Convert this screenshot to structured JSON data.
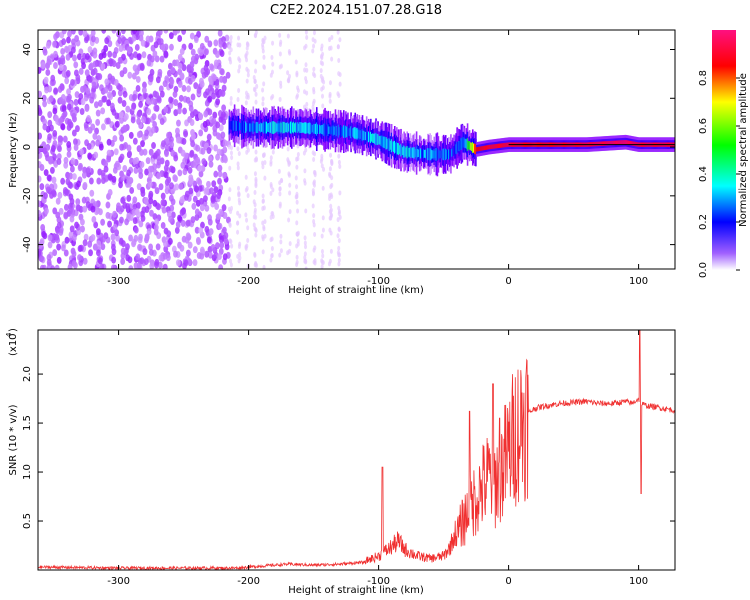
{
  "title": "C2E2.2024.151.07.28.G18",
  "chart_data": [
    {
      "type": "heatmap",
      "xlabel": "Height of straight line (km)",
      "ylabel": "Frequency (Hz)",
      "xlim": [
        -362,
        128
      ],
      "ylim": [
        -50,
        48
      ],
      "xticks": [
        -300,
        -200,
        -100,
        0,
        100
      ],
      "xtick_labels": [
        "-300",
        "-200",
        "-100",
        "0",
        "100"
      ],
      "yticks": [
        -40,
        -20,
        0,
        20,
        40
      ],
      "ytick_labels": [
        "-40",
        "-20",
        "0",
        "20",
        "40"
      ],
      "colorbar": {
        "label": "Normalized spectral amplitude",
        "range": [
          0.0,
          1.0
        ],
        "ticks": [
          0.0,
          0.2,
          0.4,
          0.6,
          0.8
        ],
        "tick_labels": [
          "0.0",
          "0.2",
          "0.4",
          "0.6",
          "0.8"
        ],
        "colormap": [
          "#ffffff",
          "#8800ff",
          "#0000ff",
          "#00ffff",
          "#00ff00",
          "#ffff00",
          "#ff0000",
          "#ff0088"
        ]
      },
      "noise_region": {
        "x": [
          -362,
          -215
        ],
        "amplitude": 0.35
      },
      "faint_streak_region": {
        "x": [
          -215,
          -125
        ]
      },
      "ridge": {
        "description_free": true,
        "x": [
          -215,
          -200,
          -180,
          -160,
          -140,
          -120,
          -100,
          -80,
          -60,
          -45,
          -35,
          -25,
          -15,
          0,
          20,
          60,
          90,
          100,
          128
        ],
        "frequency": [
          9,
          8,
          8,
          8,
          7,
          6,
          3,
          -2,
          -3,
          -3,
          2,
          -1,
          0,
          1,
          1,
          1,
          2,
          1,
          1
        ],
        "amplitude": [
          0.3,
          0.35,
          0.4,
          0.4,
          0.35,
          0.35,
          0.4,
          0.4,
          0.35,
          0.3,
          0.3,
          0.85,
          0.9,
          0.9,
          0.85,
          0.9,
          0.95,
          0.9,
          0.9
        ]
      },
      "grid": false
    },
    {
      "type": "line",
      "xlabel": "Height of straight line (km)",
      "ylabel": "SNR (10 * v/v)",
      "y_multiplier_label": "(x10",
      "y_multiplier_exp": "4",
      "xlim": [
        -362,
        128
      ],
      "ylim": [
        0,
        2.45
      ],
      "xticks": [
        -300,
        -200,
        -100,
        0,
        100
      ],
      "xtick_labels": [
        "-300",
        "-200",
        "-100",
        "0",
        "100"
      ],
      "yticks": [
        0.5,
        1.0,
        1.5,
        2.0
      ],
      "ytick_labels": [
        "0.5",
        "1.0",
        "1.5",
        "2.0"
      ],
      "color": "#f03030",
      "series": [
        {
          "x": [
            -362,
            -300,
            -250,
            -210,
            -190,
            -170,
            -150,
            -130,
            -110,
            -100,
            -90,
            -85,
            -80,
            -70,
            -60,
            -50,
            -45,
            -40,
            -35,
            -30,
            -25,
            -20,
            -15,
            -10,
            -5,
            0,
            5,
            10,
            15,
            20,
            30,
            40,
            50,
            60,
            70,
            80,
            90,
            95,
            100,
            102,
            105,
            110,
            128
          ],
          "values": [
            0.03,
            0.02,
            0.02,
            0.02,
            0.04,
            0.06,
            0.05,
            0.06,
            0.08,
            0.12,
            0.2,
            0.25,
            0.18,
            0.12,
            0.1,
            0.12,
            0.2,
            0.35,
            0.5,
            0.62,
            0.75,
            0.85,
            0.95,
            0.9,
            1.05,
            1.2,
            1.4,
            1.5,
            1.6,
            1.65,
            1.68,
            1.7,
            1.71,
            1.72,
            1.7,
            1.7,
            1.72,
            1.7,
            1.75,
            1.7,
            1.68,
            1.67,
            1.63
          ]
        }
      ],
      "spikes": [
        {
          "x": -97,
          "value": 1.05
        },
        {
          "x": -30,
          "value": 1.62
        },
        {
          "x": -12,
          "value": 1.9
        },
        {
          "x": -7,
          "value": 1.55
        },
        {
          "x": 101,
          "value": 2.45
        },
        {
          "x": 102,
          "value": 0.78
        }
      ],
      "grid": false
    }
  ]
}
